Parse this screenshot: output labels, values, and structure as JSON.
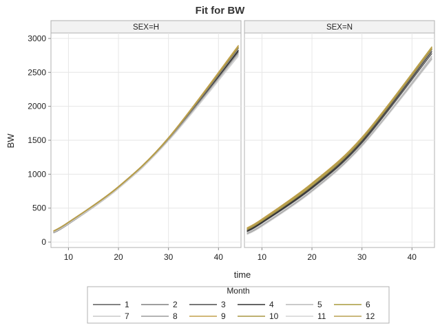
{
  "chart_data": {
    "type": "line",
    "title": "Fit for BW",
    "xlabel": "time",
    "ylabel": "BW",
    "xticks": [
      10,
      20,
      30,
      40
    ],
    "yticks": [
      0,
      500,
      1000,
      1500,
      2000,
      2500,
      3000
    ],
    "xlim": [
      6.5,
      44.5
    ],
    "ylim": [
      -80,
      3080
    ],
    "grid": true,
    "legend": {
      "title": "Month",
      "placement": "bottom",
      "entries": [
        "1",
        "2",
        "3",
        "4",
        "5",
        "6",
        "7",
        "8",
        "9",
        "10",
        "11",
        "12"
      ]
    },
    "series_colors": {
      "1": "#5a5a5a",
      "2": "#7e7e7e",
      "3": "#4a4a4a",
      "4": "#303030",
      "5": "#b8b8b8",
      "6": "#a99a3c",
      "7": "#c8c8c8",
      "8": "#9a9a9a",
      "9": "#c2a04a",
      "10": "#a89540",
      "11": "#d4d4d4",
      "12": "#b8a050"
    },
    "panels": [
      {
        "strip": "SEX=H",
        "series": [
          {
            "name": "1",
            "x": [
              7,
              10,
              20,
              30,
              44
            ],
            "y": [
              145,
              275,
              800,
              1520,
              2860
            ]
          },
          {
            "name": "2",
            "x": [
              7,
              10,
              20,
              30,
              44
            ],
            "y": [
              150,
              280,
              810,
              1530,
              2880
            ]
          },
          {
            "name": "3",
            "x": [
              7,
              10,
              20,
              30,
              44
            ],
            "y": [
              140,
              270,
              795,
              1505,
              2810
            ]
          },
          {
            "name": "4",
            "x": [
              7,
              10,
              20,
              30,
              44
            ],
            "y": [
              135,
              265,
              790,
              1500,
              2830
            ]
          },
          {
            "name": "5",
            "x": [
              7,
              10,
              20,
              30,
              44
            ],
            "y": [
              155,
              285,
              805,
              1500,
              2770
            ]
          },
          {
            "name": "6",
            "x": [
              7,
              10,
              20,
              30,
              44
            ],
            "y": [
              160,
              290,
              815,
              1535,
              2895
            ]
          },
          {
            "name": "7",
            "x": [
              7,
              10,
              20,
              30,
              44
            ],
            "y": [
              150,
              280,
              800,
              1495,
              2760
            ]
          },
          {
            "name": "8",
            "x": [
              7,
              10,
              20,
              30,
              44
            ],
            "y": [
              145,
              275,
              800,
              1510,
              2790
            ]
          },
          {
            "name": "9",
            "x": [
              7,
              10,
              20,
              30,
              44
            ],
            "y": [
              165,
              295,
              820,
              1540,
              2900
            ]
          },
          {
            "name": "10",
            "x": [
              7,
              10,
              20,
              30,
              44
            ],
            "y": [
              160,
              290,
              812,
              1530,
              2870
            ]
          },
          {
            "name": "11",
            "x": [
              7,
              10,
              20,
              30,
              44
            ],
            "y": [
              140,
              268,
              790,
              1490,
              2740
            ]
          },
          {
            "name": "12",
            "x": [
              7,
              10,
              20,
              30,
              44
            ],
            "y": [
              158,
              288,
              808,
              1525,
              2880
            ]
          }
        ]
      },
      {
        "strip": "SEX=N",
        "series": [
          {
            "name": "1",
            "x": [
              7,
              10,
              20,
              30,
              44
            ],
            "y": [
              170,
              300,
              820,
              1500,
              2840
            ]
          },
          {
            "name": "2",
            "x": [
              7,
              10,
              20,
              30,
              44
            ],
            "y": [
              190,
              320,
              850,
              1520,
              2860
            ]
          },
          {
            "name": "3",
            "x": [
              7,
              10,
              20,
              30,
              44
            ],
            "y": [
              150,
              280,
              790,
              1460,
              2780
            ]
          },
          {
            "name": "4",
            "x": [
              7,
              10,
              20,
              30,
              44
            ],
            "y": [
              160,
              290,
              805,
              1480,
              2810
            ]
          },
          {
            "name": "5",
            "x": [
              7,
              10,
              20,
              30,
              44
            ],
            "y": [
              130,
              250,
              760,
              1430,
              2740
            ]
          },
          {
            "name": "6",
            "x": [
              7,
              10,
              20,
              30,
              44
            ],
            "y": [
              200,
              330,
              860,
              1540,
              2880
            ]
          },
          {
            "name": "7",
            "x": [
              7,
              10,
              20,
              30,
              44
            ],
            "y": [
              140,
              260,
              770,
              1440,
              2720
            ]
          },
          {
            "name": "8",
            "x": [
              7,
              10,
              20,
              30,
              44
            ],
            "y": [
              120,
              240,
              750,
              1420,
              2700
            ]
          },
          {
            "name": "9",
            "x": [
              7,
              10,
              20,
              30,
              44
            ],
            "y": [
              210,
              340,
              870,
              1545,
              2870
            ]
          },
          {
            "name": "10",
            "x": [
              7,
              10,
              20,
              30,
              44
            ],
            "y": [
              180,
              310,
              830,
              1510,
              2850
            ]
          },
          {
            "name": "11",
            "x": [
              7,
              10,
              20,
              30,
              44
            ],
            "y": [
              110,
              230,
              740,
              1410,
              2690
            ]
          },
          {
            "name": "12",
            "x": [
              7,
              10,
              20,
              30,
              44
            ],
            "y": [
              195,
              325,
              845,
              1530,
              2860
            ]
          }
        ]
      }
    ]
  }
}
